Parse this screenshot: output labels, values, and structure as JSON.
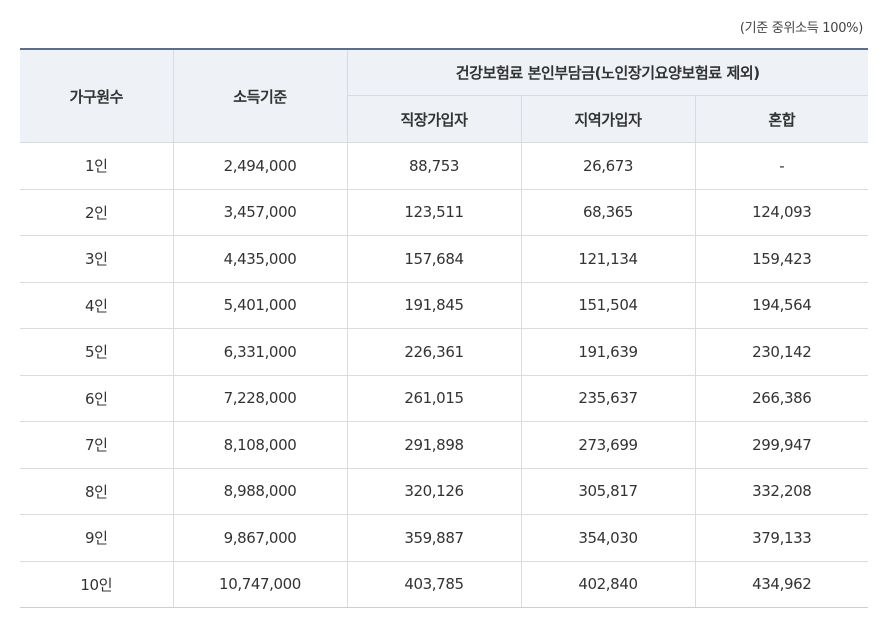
{
  "note": "(기준 중위소득 100%)",
  "headers": {
    "household": "가구원수",
    "income": "소득기준",
    "group": "건강보험료 본인부담금(노인장기요양보험료 제외)",
    "employee": "직장가입자",
    "regional": "지역가입자",
    "mixed": "혼합"
  },
  "rows": [
    {
      "household": "1인",
      "income": "2,494,000",
      "employee": "88,753",
      "regional": "26,673",
      "mixed": "-"
    },
    {
      "household": "2인",
      "income": "3,457,000",
      "employee": "123,511",
      "regional": "68,365",
      "mixed": "124,093"
    },
    {
      "household": "3인",
      "income": "4,435,000",
      "employee": "157,684",
      "regional": "121,134",
      "mixed": "159,423"
    },
    {
      "household": "4인",
      "income": "5,401,000",
      "employee": "191,845",
      "regional": "151,504",
      "mixed": "194,564"
    },
    {
      "household": "5인",
      "income": "6,331,000",
      "employee": "226,361",
      "regional": "191,639",
      "mixed": "230,142"
    },
    {
      "household": "6인",
      "income": "7,228,000",
      "employee": "261,015",
      "regional": "235,637",
      "mixed": "266,386"
    },
    {
      "household": "7인",
      "income": "8,108,000",
      "employee": "291,898",
      "regional": "273,699",
      "mixed": "299,947"
    },
    {
      "household": "8인",
      "income": "8,988,000",
      "employee": "320,126",
      "regional": "305,817",
      "mixed": "332,208"
    },
    {
      "household": "9인",
      "income": "9,867,000",
      "employee": "359,887",
      "regional": "354,030",
      "mixed": "379,133"
    },
    {
      "household": "10인",
      "income": "10,747,000",
      "employee": "403,785",
      "regional": "402,840",
      "mixed": "434,962"
    }
  ]
}
